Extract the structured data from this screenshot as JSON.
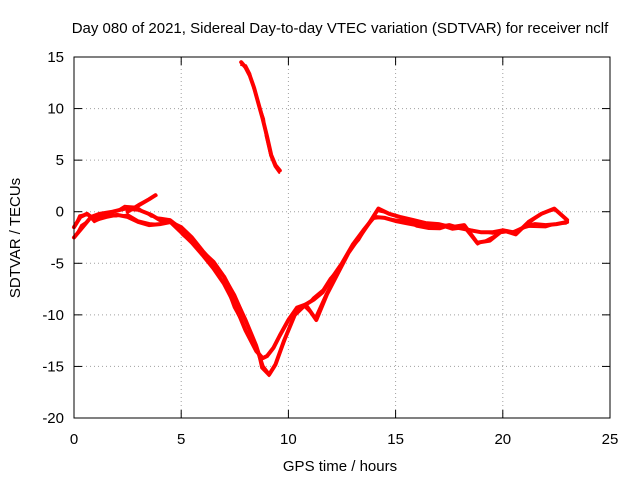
{
  "chart_data": {
    "type": "line",
    "title": "Day 080 of 2021, Sidereal Day-to-day VTEC variation (SDTVAR) for receiver nclf",
    "xlabel": "GPS time / hours",
    "ylabel": "SDTVAR / TECUs",
    "xlim": [
      0,
      25
    ],
    "ylim": [
      -20,
      15
    ],
    "xticks": [
      0,
      5,
      10,
      15,
      20,
      25
    ],
    "yticks": [
      -20,
      -15,
      -10,
      -5,
      0,
      5,
      10,
      15
    ],
    "xtick_labels": [
      "0",
      "5",
      "10",
      "15",
      "20",
      "25"
    ],
    "ytick_labels": [
      "-20",
      "-15",
      "-10",
      "-5",
      "0",
      "5",
      "10",
      "15"
    ],
    "grid": true,
    "series_color": "#ff0000",
    "series": [
      {
        "name": "main band A",
        "x": [
          0.0,
          0.3,
          0.6,
          1.0,
          1.5,
          2.0,
          2.5,
          3.0,
          3.5,
          4.0,
          4.5,
          5.0,
          5.5,
          6.0,
          6.5,
          7.0,
          7.5,
          8.0,
          8.5,
          8.8,
          9.0,
          9.3,
          9.6,
          10.0,
          10.4,
          10.8,
          11.2,
          11.6,
          12.0,
          12.5,
          13.0,
          13.5,
          14.0,
          14.5,
          15.0,
          15.5,
          16.0,
          16.5,
          17.0,
          17.5,
          18.0,
          18.5,
          19.0,
          19.5,
          20.0,
          20.5,
          21.0,
          21.5,
          22.0,
          22.5,
          23.0
        ],
        "y": [
          -1.5,
          -0.5,
          -0.2,
          -0.8,
          -0.5,
          -0.3,
          -0.5,
          -1.0,
          -1.3,
          -1.2,
          -1.0,
          -2.0,
          -3.0,
          -4.2,
          -5.5,
          -7.0,
          -9.0,
          -11.5,
          -13.5,
          -14.2,
          -14.0,
          -13.2,
          -12.0,
          -10.5,
          -9.3,
          -9.0,
          -8.5,
          -7.8,
          -6.5,
          -5.0,
          -3.2,
          -1.8,
          -0.5,
          -0.6,
          -0.9,
          -1.1,
          -1.3,
          -1.4,
          -1.5,
          -1.3,
          -1.6,
          -1.8,
          -2.0,
          -2.0,
          -1.8,
          -2.0,
          -1.5,
          -1.2,
          -1.3,
          -1.2,
          -1.0
        ]
      },
      {
        "name": "main band B",
        "x": [
          0.0,
          0.4,
          0.8,
          1.2,
          1.8,
          2.4,
          3.0,
          3.6,
          4.0,
          4.5,
          5.0,
          5.5,
          6.0,
          6.5,
          7.0,
          7.5,
          8.0,
          8.5,
          8.8,
          9.1,
          9.4,
          9.8,
          10.3,
          10.8,
          11.3,
          11.8,
          12.3,
          12.8,
          13.3,
          13.8,
          14.2,
          14.7,
          15.2,
          15.8,
          16.4,
          17.0,
          17.6,
          18.2,
          18.8,
          19.4,
          20.0,
          20.6,
          21.2,
          21.8,
          22.4,
          23.0
        ],
        "y": [
          -2.5,
          -1.5,
          -0.5,
          -0.2,
          0.0,
          0.3,
          0.2,
          -0.3,
          -0.8,
          -1.0,
          -1.5,
          -2.5,
          -3.8,
          -5.0,
          -6.3,
          -8.3,
          -10.5,
          -13.0,
          -15.0,
          -15.8,
          -14.8,
          -12.5,
          -10.0,
          -9.0,
          -10.5,
          -8.0,
          -6.0,
          -4.0,
          -2.5,
          -1.0,
          0.3,
          -0.2,
          -0.5,
          -0.8,
          -1.1,
          -1.2,
          -1.5,
          -1.3,
          -3.0,
          -2.8,
          -1.8,
          -2.2,
          -1.0,
          -0.2,
          0.3,
          -0.8
        ]
      },
      {
        "name": "upper arc",
        "x": [
          7.8,
          8.0,
          8.2,
          8.4,
          8.6,
          8.8,
          9.0,
          9.2,
          9.4,
          9.6
        ],
        "y": [
          14.5,
          14.0,
          13.2,
          12.0,
          10.5,
          9.0,
          7.3,
          5.5,
          4.5,
          4.0
        ]
      },
      {
        "name": "side spurs",
        "x": [
          2.5,
          3.0,
          3.5,
          3.8
        ],
        "y": [
          0.0,
          0.6,
          1.2,
          1.6
        ]
      }
    ]
  }
}
